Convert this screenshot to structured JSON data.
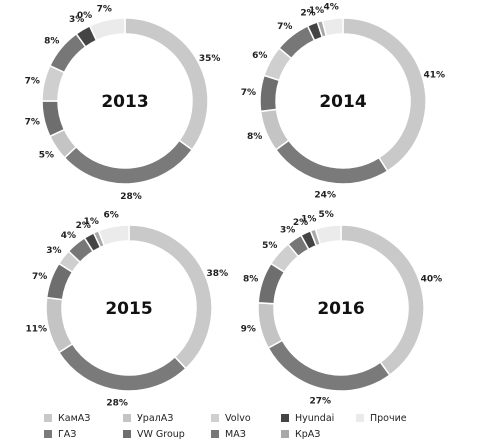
{
  "colors": {
    "КамАЗ": "#c9c9c9",
    "ГАЗ": "#7a7a7a",
    "УралАЗ": "#c4c4c4",
    "VW Group": "#6e6e6e",
    "Volvo": "#cfcfcf",
    "МАЗ": "#777777",
    "Hyundai": "#444444",
    "КрАЗ": "#a8a8a8",
    "Прочие": "#ebebeb"
  },
  "chart_data": [
    {
      "type": "pie",
      "title": "2013",
      "categories": [
        "КамАЗ",
        "ГАЗ",
        "УралАЗ",
        "VW Group",
        "Volvo",
        "МАЗ",
        "Hyundai",
        "КрАЗ",
        "Прочие"
      ],
      "values": [
        35,
        28,
        5,
        7,
        7,
        8,
        3,
        0,
        7
      ],
      "labels": [
        "35%",
        "28%",
        "5%",
        "7%",
        "7%",
        "8%",
        "3%",
        "0%",
        "7%"
      ]
    },
    {
      "type": "pie",
      "title": "2014",
      "categories": [
        "КамАЗ",
        "ГАЗ",
        "УралАЗ",
        "VW Group",
        "Volvo",
        "МАЗ",
        "Hyundai",
        "КрАЗ",
        "Прочие"
      ],
      "values": [
        41,
        24,
        8,
        7,
        6,
        7,
        2,
        1,
        4
      ],
      "labels": [
        "41%",
        "24%",
        "8%",
        "7%",
        "6%",
        "7%",
        "2%",
        "1%",
        "4%"
      ]
    },
    {
      "type": "pie",
      "title": "2015",
      "categories": [
        "КамАЗ",
        "ГАЗ",
        "УралАЗ",
        "VW Group",
        "Volvo",
        "МАЗ",
        "Hyundai",
        "КрАЗ",
        "Прочие"
      ],
      "values": [
        38,
        28,
        11,
        7,
        3,
        4,
        2,
        1,
        6
      ],
      "labels": [
        "38%",
        "28%",
        "11%",
        "7%",
        "3%",
        "4%",
        "2%",
        "1%",
        "6%"
      ]
    },
    {
      "type": "pie",
      "title": "2016",
      "categories": [
        "КамАЗ",
        "ГАЗ",
        "УралАЗ",
        "VW Group",
        "Volvo",
        "МАЗ",
        "Hyundai",
        "КрАЗ",
        "Прочие"
      ],
      "values": [
        40,
        27,
        9,
        8,
        5,
        3,
        2,
        1,
        5
      ],
      "labels": [
        "40%",
        "27%",
        "9%",
        "8%",
        "5%",
        "3%",
        "2%",
        "1%",
        "5%"
      ]
    }
  ],
  "legend": {
    "items": [
      "КамАЗ",
      "УралАЗ",
      "Volvo",
      "Hyundai",
      "Прочие",
      "ГАЗ",
      "VW Group",
      "МАЗ",
      "КрАЗ"
    ]
  }
}
